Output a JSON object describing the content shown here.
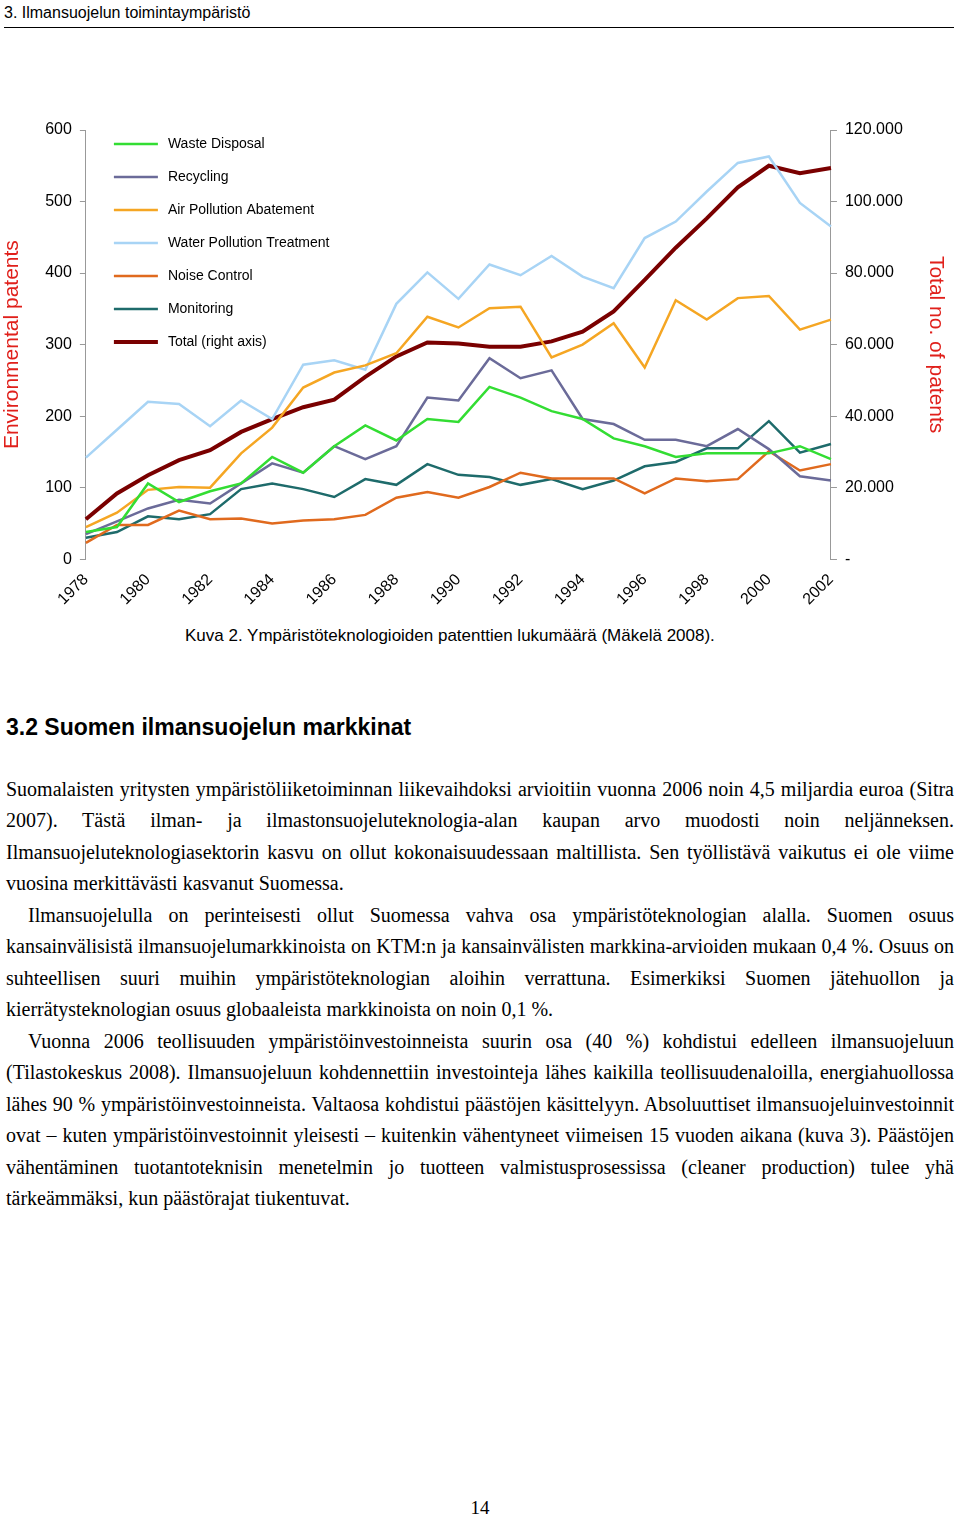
{
  "header": {
    "title": "3. Ilmansuojelun toimintaympäristö"
  },
  "chart_data": {
    "type": "line",
    "ylabel": "Environmental patents",
    "y2label": "Total no. of patents",
    "categories": [
      "1978",
      null,
      "1980",
      null,
      "1982",
      null,
      "1984",
      null,
      "1986",
      null,
      "1988",
      null,
      "1990",
      null,
      "1992",
      null,
      "1994",
      null,
      "1996",
      null,
      "1998",
      null,
      "2000",
      null,
      "2002"
    ],
    "series": [
      {
        "name": "Waste Disposal",
        "color": "#33dd33",
        "values": [
          38,
          45,
          106,
          80,
          95,
          106,
          143,
          121,
          158,
          187,
          166,
          196,
          192,
          241,
          226,
          207,
          196,
          169,
          158,
          143,
          148,
          148,
          148,
          158,
          140
        ]
      },
      {
        "name": "Recycling",
        "color": "#6b6b99",
        "values": [
          35,
          53,
          71,
          83,
          78,
          106,
          134,
          121,
          158,
          140,
          158,
          226,
          222,
          281,
          253,
          264,
          196,
          189,
          167,
          167,
          158,
          182,
          154,
          116,
          110
        ]
      },
      {
        "name": "Air Pollution Abatement",
        "color": "#f5a623",
        "values": [
          45,
          65,
          97,
          101,
          100,
          148,
          184,
          240,
          261,
          271,
          288,
          339,
          324,
          351,
          353,
          282,
          300,
          330,
          268,
          362,
          335,
          365,
          368,
          321,
          335
        ]
      },
      {
        "name": "Water Pollution Treatment",
        "color": "#a8d4f5",
        "values": [
          142,
          181,
          220,
          217,
          186,
          222,
          196,
          272,
          278,
          265,
          357,
          401,
          364,
          412,
          397,
          424,
          395,
          379,
          449,
          472,
          514,
          554,
          563,
          498,
          465
        ]
      },
      {
        "name": "Noise Control",
        "color": "#e06a1e",
        "values": [
          23,
          48,
          48,
          68,
          56,
          57,
          50,
          54,
          56,
          62,
          86,
          94,
          86,
          101,
          121,
          113,
          113,
          113,
          92,
          113,
          109,
          112,
          151,
          124,
          133
        ]
      },
      {
        "name": "Monitoring",
        "color": "#1e6b6b",
        "values": [
          30,
          38,
          60,
          56,
          63,
          98,
          106,
          98,
          87,
          112,
          104,
          133,
          118,
          115,
          104,
          112,
          98,
          110,
          130,
          136,
          155,
          155,
          193,
          149,
          161
        ]
      },
      {
        "name": "Total (right axis)",
        "color": "#7a0000",
        "axis": "y2",
        "values": [
          11200,
          18400,
          23500,
          27700,
          30500,
          35600,
          39200,
          42500,
          44600,
          51000,
          56700,
          60600,
          60300,
          59400,
          59400,
          60900,
          63600,
          69300,
          78100,
          87100,
          95300,
          104000,
          110000,
          107900,
          109400
        ]
      }
    ],
    "ylim": [
      0,
      600
    ],
    "yticks": [
      0,
      100,
      200,
      300,
      400,
      500,
      600
    ],
    "y2lim": [
      0,
      120000
    ],
    "y2ticks": [
      {
        "value": 0,
        "label": "-"
      },
      {
        "value": 20000,
        "label": "20.000"
      },
      {
        "value": 40000,
        "label": "40.000"
      },
      {
        "value": 60000,
        "label": "60.000"
      },
      {
        "value": 80000,
        "label": "80.000"
      },
      {
        "value": 100000,
        "label": "100.000"
      },
      {
        "value": 120000,
        "label": "120.000"
      }
    ],
    "grid": false,
    "legend": "upper left"
  },
  "caption": "Kuva 2. Ympäristöteknologioiden patenttien lukumäärä (Mäkelä 2008).",
  "section": {
    "heading": "3.2 Suomen ilmansuojelun markkinat",
    "paragraphs": [
      "Suomalaisten yritysten ympäristöliiketoiminnan liikevaihdoksi arvioitiin vuonna 2006 noin 4,5 miljardia euroa (Sitra 2007). Tästä ilman- ja ilmastonsuojeluteknologia-alan kaupan arvo muodosti noin neljänneksen. Ilmansuojeluteknologiasektorin kasvu on ollut kokonaisuudessaan maltillista. Sen työllistävä vaikutus ei ole viime vuosina merkittävästi kasvanut Suomessa.",
      "Ilmansuojelulla on perinteisesti ollut Suomessa vahva osa ympäristöteknologian alalla. Suomen osuus kansainvälisistä ilmansuojelumarkkinoista on KTM:n ja kansainvälisten markkina-arvioiden mukaan 0,4 %. Osuus on suhteellisen suuri muihin ympäristöteknologian aloihin verrattuna. Esimerkiksi Suomen jätehuollon ja kierrätysteknologian osuus globaaleista markkinoista on noin 0,1 %.",
      "Vuonna 2006 teollisuuden ympäristöinvestoinneista suurin osa (40 %) kohdistui edelleen ilmansuojeluun (Tilastokeskus 2008). Ilmansuojeluun kohdennettiin investointeja lähes kaikilla teollisuudenaloilla, energiahuollossa lähes 90 % ympäristöinvestoinneista. Valtaosa kohdistui päästöjen käsittelyyn. Absoluuttiset ilmansuojeluinvestoinnit ovat – kuten ympäristöinvestoinnit yleisesti – kuitenkin vähentyneet viimeisen 15 vuoden aikana (kuva 3). Päästöjen vähentäminen tuotantoteknisin menetelmin jo tuotteen valmistusprosessissa (cleaner production) tulee yhä tärkeämmäksi, kun päästörajat tiukentuvat."
    ]
  },
  "page_number": 14
}
